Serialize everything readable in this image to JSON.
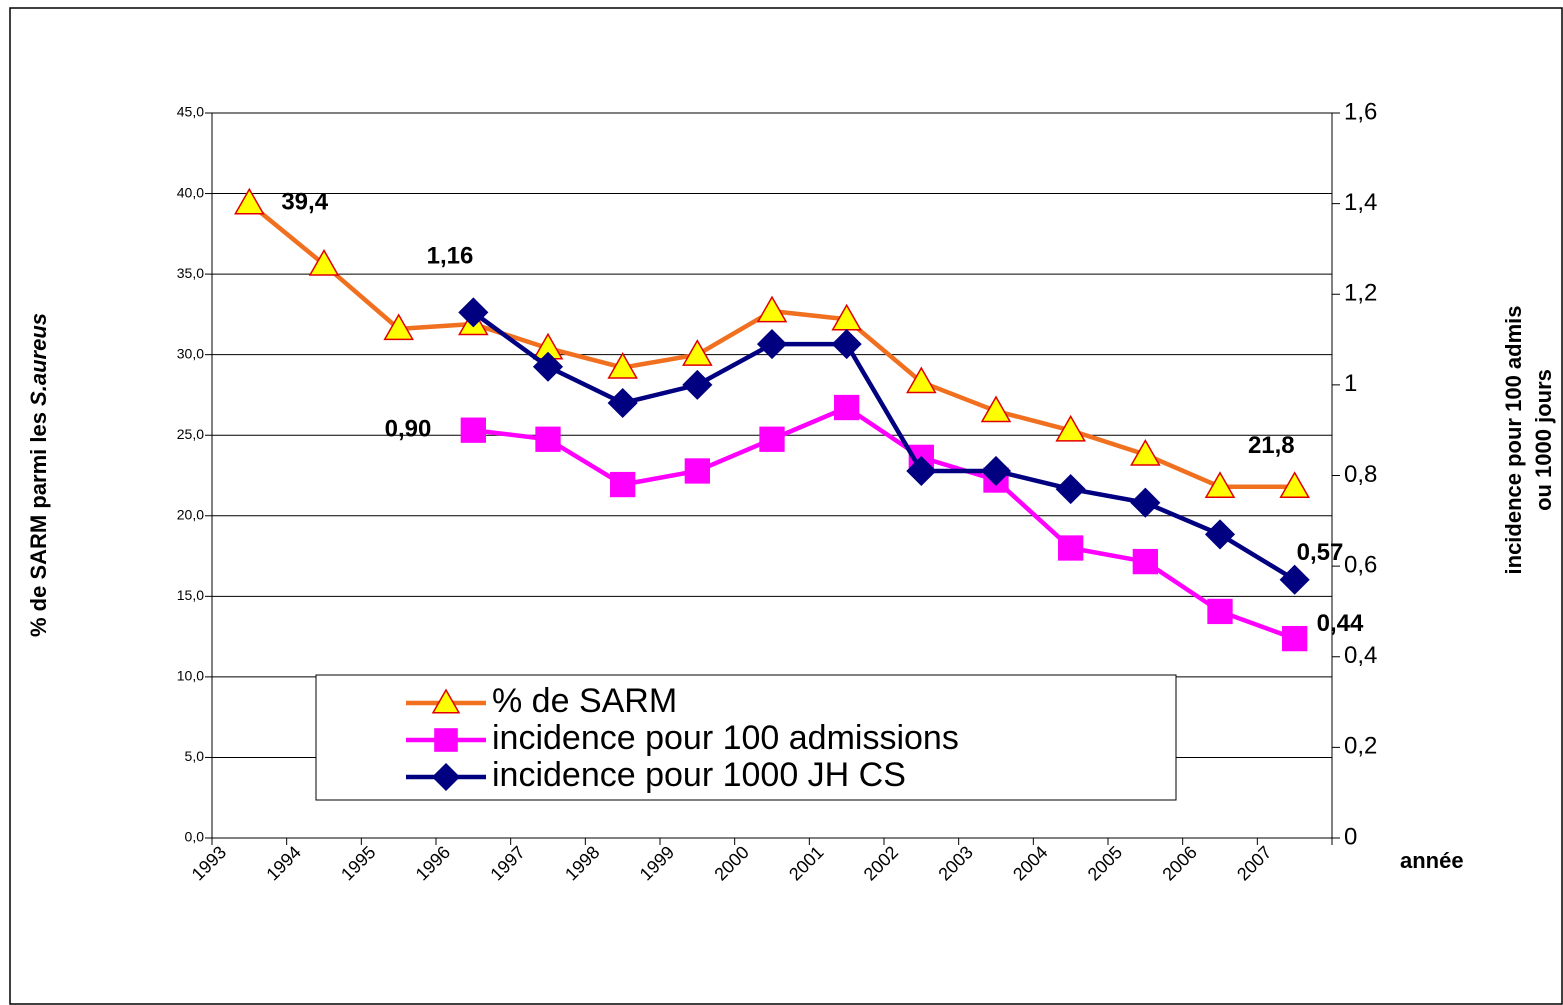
{
  "chart_data": {
    "type": "line",
    "categories": [
      "1993",
      "1994",
      "1995",
      "1996",
      "1997",
      "1998",
      "1999",
      "2000",
      "2001",
      "2002",
      "2003",
      "2004",
      "2005",
      "2006",
      "2007"
    ],
    "ylabel": "% de SARM parmi les",
    "ylabel_italic": "S.aureus",
    "y2label": [
      "incidence pour 100 admis",
      "ou 1000 jours"
    ],
    "xlabel": "année",
    "ylim": [
      0,
      45
    ],
    "yticks": [
      {
        "value": 0,
        "label": "0,0"
      },
      {
        "value": 5,
        "label": "5,0"
      },
      {
        "value": 10,
        "label": "10,0"
      },
      {
        "value": 15,
        "label": "15,0"
      },
      {
        "value": 20,
        "label": "20,0"
      },
      {
        "value": 25,
        "label": "25,0"
      },
      {
        "value": 30,
        "label": "30,0"
      },
      {
        "value": 35,
        "label": "35,0"
      },
      {
        "value": 40,
        "label": "40,0"
      },
      {
        "value": 45,
        "label": "45,0"
      }
    ],
    "y2lim": [
      0,
      1.6
    ],
    "y2ticks": [
      0,
      {
        "value": 0.2,
        "label": "0,2"
      },
      {
        "value": 0.4,
        "label": "0,4"
      },
      {
        "value": 0.6,
        "label": "0,6"
      },
      {
        "value": 0.8,
        "label": "0,8"
      },
      1,
      {
        "value": 1.2,
        "label": "1,2"
      },
      {
        "value": 1.4,
        "label": "1,4"
      },
      {
        "value": 1.6,
        "label": "1,6"
      }
    ],
    "grid": true,
    "series": [
      {
        "name": "% de SARM",
        "color": "#f07020",
        "marker": "triangle",
        "marker_color": "#ffff00",
        "marker_edge": "#e00000",
        "values": [
          39.4,
          35.6,
          31.6,
          31.9,
          30.4,
          29.2,
          30.0,
          32.7,
          32.2,
          28.3,
          26.5,
          25.3,
          23.8,
          21.8,
          21.8
        ],
        "value_labels": [
          "39,4",
          null,
          null,
          null,
          null,
          null,
          null,
          null,
          null,
          null,
          null,
          null,
          null,
          null,
          "21,8"
        ]
      },
      {
        "name": "incidence pour 100 admissions",
        "color": "#ff00ff",
        "marker": "square",
        "marker_color": "#ff00ff",
        "marker_edge": "#ff00ff",
        "axis": "y2",
        "values": [
          null,
          null,
          null,
          0.9,
          0.88,
          0.78,
          0.81,
          0.88,
          0.95,
          0.84,
          0.79,
          0.64,
          0.61,
          0.5,
          0.44
        ],
        "value_labels": [
          null,
          null,
          null,
          "0,90",
          null,
          null,
          null,
          null,
          null,
          null,
          null,
          null,
          null,
          null,
          "0,44"
        ]
      },
      {
        "name": "incidence pour 1000 JH CS",
        "color": "#000080",
        "marker": "diamond",
        "marker_color": "#000080",
        "marker_edge": "#000080",
        "axis": "y2",
        "values": [
          null,
          null,
          null,
          1.16,
          1.04,
          0.96,
          1.0,
          1.09,
          1.09,
          0.81,
          0.81,
          0.77,
          0.74,
          0.67,
          0.57
        ],
        "value_labels": [
          null,
          null,
          null,
          "1,16",
          null,
          null,
          null,
          null,
          null,
          null,
          null,
          null,
          null,
          null,
          "0,57"
        ]
      }
    ]
  }
}
